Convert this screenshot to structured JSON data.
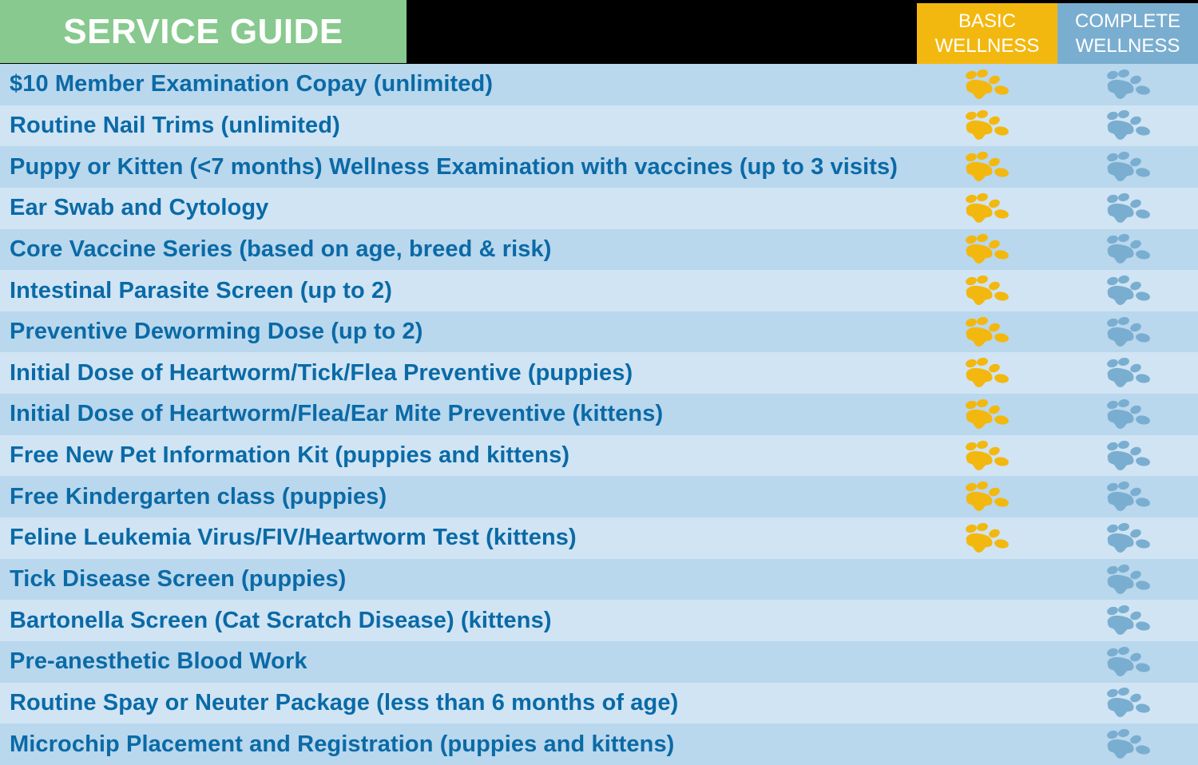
{
  "header": {
    "title": "SERVICE GUIDE",
    "columns": [
      {
        "label_line1": "BASIC",
        "label_line2": "WELLNESS",
        "color": "#f3b80f"
      },
      {
        "label_line1": "COMPLETE",
        "label_line2": "WELLNESS",
        "color": "#7aaed0"
      }
    ]
  },
  "colors": {
    "title_bg": "#87c98e",
    "row_dark": "#b9d7ed",
    "row_light": "#d0e4f4",
    "text": "#0a6aa6",
    "basic_paw": "#f3b80f",
    "complete_paw": "#7aaed0"
  },
  "icons": {
    "included_marker": "paw-print-icon"
  },
  "services": [
    {
      "label": "$10 Member Examination Copay (unlimited)",
      "basic": true,
      "complete": true
    },
    {
      "label": "Routine Nail Trims (unlimited)",
      "basic": true,
      "complete": true
    },
    {
      "label": "Puppy or Kitten (<7 months) Wellness Examination with vaccines (up to 3 visits)",
      "basic": true,
      "complete": true
    },
    {
      "label": "Ear Swab and Cytology",
      "basic": true,
      "complete": true
    },
    {
      "label": "Core Vaccine Series (based on age, breed & risk)",
      "basic": true,
      "complete": true
    },
    {
      "label": "Intestinal Parasite Screen (up to 2)",
      "basic": true,
      "complete": true
    },
    {
      "label": "Preventive Deworming Dose (up to 2)",
      "basic": true,
      "complete": true
    },
    {
      "label": "Initial Dose of Heartworm/Tick/Flea Preventive (puppies)",
      "basic": true,
      "complete": true
    },
    {
      "label": "Initial Dose of Heartworm/Flea/Ear Mite Preventive (kittens)",
      "basic": true,
      "complete": true
    },
    {
      "label": "Free New Pet Information Kit (puppies and kittens)",
      "basic": true,
      "complete": true
    },
    {
      "label": "Free Kindergarten class (puppies)",
      "basic": true,
      "complete": true
    },
    {
      "label": "Feline Leukemia Virus/FIV/Heartworm Test (kittens)",
      "basic": true,
      "complete": true
    },
    {
      "label": "Tick Disease Screen (puppies)",
      "basic": false,
      "complete": true
    },
    {
      "label": "Bartonella Screen (Cat Scratch Disease) (kittens)",
      "basic": false,
      "complete": true
    },
    {
      "label": "Pre-anesthetic Blood Work",
      "basic": false,
      "complete": true
    },
    {
      "label": "Routine Spay or Neuter Package (less than 6 months of age)",
      "basic": false,
      "complete": true
    },
    {
      "label": "Microchip Placement and Registration (puppies and kittens)",
      "basic": false,
      "complete": true
    }
  ]
}
